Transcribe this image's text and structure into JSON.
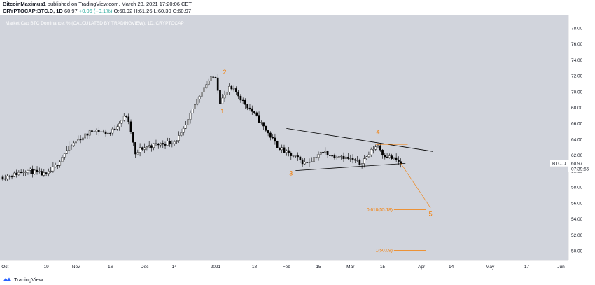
{
  "header": {
    "line1": {
      "author": "BitcoinMaximus1",
      "text": " published on TradingView.com, March 23, 2021 17:20:06 CET"
    },
    "line2": {
      "symbol": "CRYPTOCAP:BTC.D, 1D",
      "last": "60.97",
      "change": "+0.06 (+0.1%)",
      "o": "O:60.92",
      "h": "H:61.26",
      "l": "L:60.30",
      "c": "C:60.97"
    }
  },
  "chart_data": {
    "type": "candlestick",
    "title": "Market Cap BTC Dominance, % (CALCULATED BY TRADINGVIEW), 1D, CRYPTOCAP",
    "background_color": "#d1d4dc",
    "ylim": [
      48.8,
      79.6
    ],
    "y_ticks": [
      "50.00",
      "52.00",
      "54.00",
      "56.00",
      "58.00",
      "60.00",
      "62.00",
      "64.00",
      "66.00",
      "68.00",
      "70.00",
      "72.00",
      "74.00",
      "76.00",
      "78.00"
    ],
    "x_ticks": [
      {
        "label": "Oct",
        "date": "2020-10-01"
      },
      {
        "label": "19",
        "date": "2020-10-19"
      },
      {
        "label": "Nov",
        "date": "2020-11-01"
      },
      {
        "label": "16",
        "date": "2020-11-16"
      },
      {
        "label": "Dec",
        "date": "2020-12-01"
      },
      {
        "label": "14",
        "date": "2020-12-14"
      },
      {
        "label": "2021",
        "date": "2021-01-01"
      },
      {
        "label": "18",
        "date": "2021-01-18"
      },
      {
        "label": "Feb",
        "date": "2021-02-01"
      },
      {
        "label": "15",
        "date": "2021-02-15"
      },
      {
        "label": "Mar",
        "date": "2021-03-01"
      },
      {
        "label": "15",
        "date": "2021-03-15"
      },
      {
        "label": "Apr",
        "date": "2021-04-01"
      },
      {
        "label": "14",
        "date": "2021-04-14"
      },
      {
        "label": "May",
        "date": "2021-05-01"
      },
      {
        "label": "17",
        "date": "2021-05-17"
      },
      {
        "label": "Jun",
        "date": "2021-06-01"
      }
    ],
    "price_path": [
      {
        "date": "2020-09-30",
        "value": 59.3
      },
      {
        "date": "2020-10-05",
        "value": 59.6
      },
      {
        "date": "2020-10-10",
        "value": 60.2
      },
      {
        "date": "2020-10-15",
        "value": 59.8
      },
      {
        "date": "2020-10-19",
        "value": 59.5
      },
      {
        "date": "2020-10-23",
        "value": 60.6
      },
      {
        "date": "2020-10-27",
        "value": 62.3
      },
      {
        "date": "2020-11-01",
        "value": 63.8
      },
      {
        "date": "2020-11-05",
        "value": 64.5
      },
      {
        "date": "2020-11-09",
        "value": 65.3
      },
      {
        "date": "2020-11-13",
        "value": 64.9
      },
      {
        "date": "2020-11-16",
        "value": 64.8
      },
      {
        "date": "2020-11-20",
        "value": 66.2
      },
      {
        "date": "2020-11-23",
        "value": 67.0
      },
      {
        "date": "2020-11-25",
        "value": 65.0
      },
      {
        "date": "2020-11-27",
        "value": 62.0
      },
      {
        "date": "2020-11-29",
        "value": 62.8
      },
      {
        "date": "2020-12-03",
        "value": 63.2
      },
      {
        "date": "2020-12-07",
        "value": 63.4
      },
      {
        "date": "2020-12-11",
        "value": 63.6
      },
      {
        "date": "2020-12-14",
        "value": 63.8
      },
      {
        "date": "2020-12-17",
        "value": 64.6
      },
      {
        "date": "2020-12-20",
        "value": 66.3
      },
      {
        "date": "2020-12-23",
        "value": 68.4
      },
      {
        "date": "2020-12-26",
        "value": 70.2
      },
      {
        "date": "2020-12-29",
        "value": 71.4
      },
      {
        "date": "2021-01-01",
        "value": 72.0
      },
      {
        "date": "2021-01-03",
        "value": 68.8
      },
      {
        "date": "2021-01-05",
        "value": 69.5
      },
      {
        "date": "2021-01-07",
        "value": 70.4
      },
      {
        "date": "2021-01-10",
        "value": 70.0
      },
      {
        "date": "2021-01-13",
        "value": 68.8
      },
      {
        "date": "2021-01-16",
        "value": 67.9
      },
      {
        "date": "2021-01-19",
        "value": 66.8
      },
      {
        "date": "2021-01-22",
        "value": 65.6
      },
      {
        "date": "2021-01-25",
        "value": 64.4
      },
      {
        "date": "2021-01-28",
        "value": 63.2
      },
      {
        "date": "2021-01-31",
        "value": 62.5
      },
      {
        "date": "2021-02-03",
        "value": 62.0
      },
      {
        "date": "2021-02-06",
        "value": 61.6
      },
      {
        "date": "2021-02-09",
        "value": 61.0
      },
      {
        "date": "2021-02-12",
        "value": 61.5
      },
      {
        "date": "2021-02-15",
        "value": 62.2
      },
      {
        "date": "2021-02-18",
        "value": 62.4
      },
      {
        "date": "2021-02-21",
        "value": 61.9
      },
      {
        "date": "2021-02-24",
        "value": 62.1
      },
      {
        "date": "2021-02-27",
        "value": 61.7
      },
      {
        "date": "2021-03-02",
        "value": 61.4
      },
      {
        "date": "2021-03-05",
        "value": 61.0
      },
      {
        "date": "2021-03-08",
        "value": 61.8
      },
      {
        "date": "2021-03-11",
        "value": 62.9
      },
      {
        "date": "2021-03-13",
        "value": 63.3
      },
      {
        "date": "2021-03-15",
        "value": 62.2
      },
      {
        "date": "2021-03-18",
        "value": 61.8
      },
      {
        "date": "2021-03-21",
        "value": 61.4
      },
      {
        "date": "2021-03-23",
        "value": 60.97
      }
    ],
    "drawings": {
      "triangle_upper": [
        {
          "date": "2021-02-01",
          "value": 65.4
        },
        {
          "date": "2021-04-06",
          "value": 62.5
        }
      ],
      "triangle_lower": [
        {
          "date": "2021-02-05",
          "value": 60.1
        },
        {
          "date": "2021-03-25",
          "value": 61.0
        }
      ],
      "projection": [
        {
          "date": "2021-03-23",
          "value": 61.0
        },
        {
          "date": "2021-04-05",
          "value": 55.4
        }
      ],
      "wave4_hline": [
        {
          "date": "2021-03-12",
          "value": 63.4
        },
        {
          "date": "2021-03-26",
          "value": 63.4
        }
      ]
    },
    "wave_labels": [
      {
        "label": "1",
        "date": "2021-01-04",
        "value": 67.3
      },
      {
        "label": "2",
        "date": "2021-01-05",
        "value": 72.2
      },
      {
        "label": "3",
        "date": "2021-02-03",
        "value": 59.5
      },
      {
        "label": "4",
        "date": "2021-03-13",
        "value": 64.7
      },
      {
        "label": "5",
        "date": "2021-04-05",
        "value": 54.4
      }
    ],
    "fib_levels": [
      {
        "label": "0.618(55.18)",
        "value": 55.18
      },
      {
        "label": "1(50.09)",
        "value": 50.09
      }
    ],
    "current": {
      "label": "BTC.D",
      "value": 60.97,
      "value_text": "60.97",
      "countdown": "07:39:55"
    },
    "colors": {
      "up": "#ffffff",
      "down": "#000000",
      "wave": "#f57c00",
      "trendline": "#000000"
    }
  },
  "footer": {
    "brand": "TradingView"
  }
}
